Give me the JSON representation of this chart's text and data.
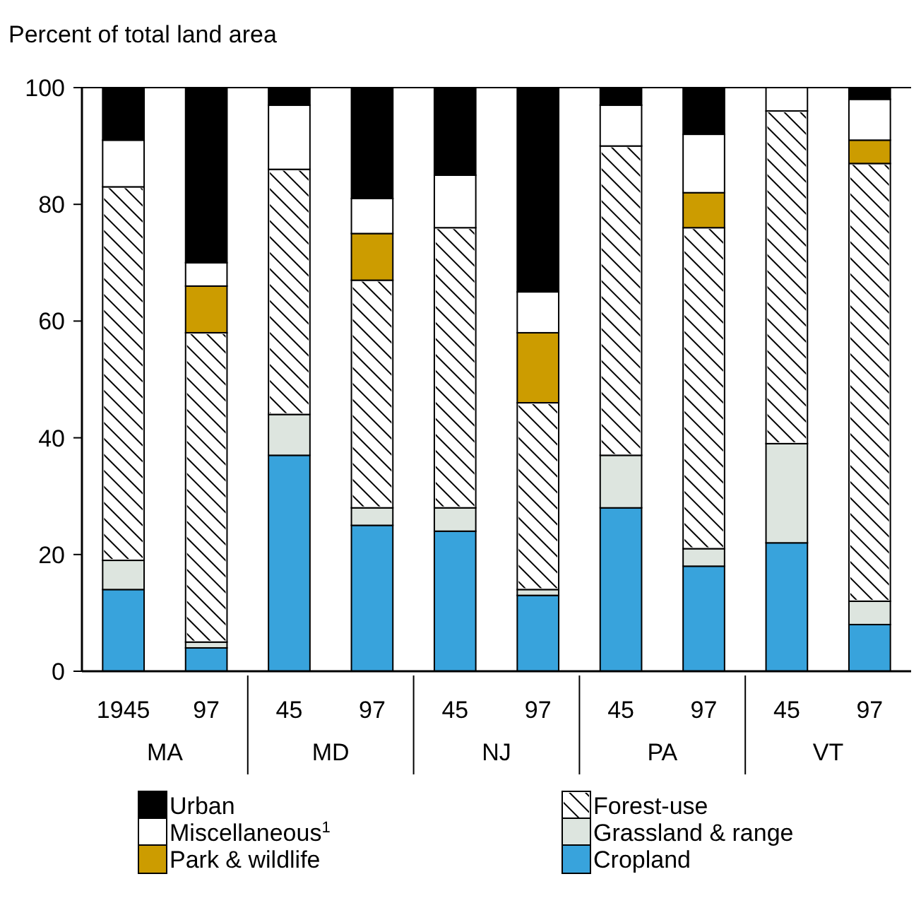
{
  "chart_data": {
    "type": "bar",
    "stacked": true,
    "ylabel": "Percent of total land area",
    "categories": [
      "1945",
      "97",
      "45",
      "97",
      "45",
      "97",
      "45",
      "97",
      "45",
      "97"
    ],
    "annotations": [
      "MA",
      "MD",
      "NJ",
      "PA",
      "VT"
    ],
    "series": [
      {
        "name": "Cropland",
        "color": "#38a3dc",
        "values": [
          14,
          4,
          37,
          25,
          24,
          13,
          28,
          18,
          22,
          8
        ]
      },
      {
        "name": "Grassland & range",
        "color": "#dde5df",
        "values": [
          5,
          1,
          7,
          3,
          4,
          1,
          9,
          3,
          17,
          4
        ]
      },
      {
        "name": "Forest-use",
        "color": "#ffffff",
        "values": [
          64,
          53,
          42,
          39,
          48,
          32,
          53,
          55,
          57,
          75
        ]
      },
      {
        "name": "Park & wildlife",
        "color": "#cc9c00",
        "values": [
          0,
          8,
          0,
          8,
          0,
          12,
          0,
          6,
          0,
          4
        ]
      },
      {
        "name": "Miscellaneous$^{1}$",
        "color": "#ffffff",
        "values": [
          8,
          4,
          11,
          6,
          9,
          7,
          7,
          10,
          4,
          7
        ]
      },
      {
        "name": "Urban",
        "color": "#000000",
        "values": [
          9,
          30,
          3,
          19,
          15,
          35,
          3,
          8,
          0,
          2
        ]
      }
    ],
    "ylim": [
      0,
      100
    ],
    "yticks": [
      0,
      20,
      40,
      60,
      80,
      100
    ],
    "grid": false,
    "legend": "bottom"
  }
}
